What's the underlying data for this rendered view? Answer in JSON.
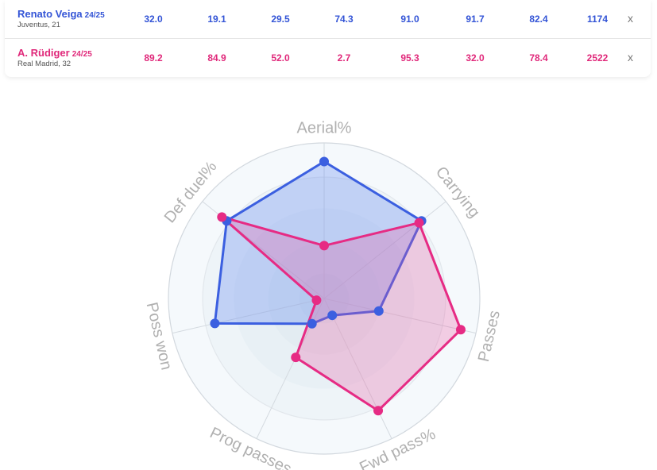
{
  "players": [
    {
      "name": "Renato Veiga",
      "season": "24/25",
      "team_age": "Juventus, 21",
      "stats": [
        "32.0",
        "19.1",
        "29.5",
        "74.3",
        "91.0",
        "91.7",
        "82.4",
        "1174"
      ],
      "remove_label": "x",
      "color": "#3b5fe0"
    },
    {
      "name": "A. Rüdiger",
      "season": "24/25",
      "team_age": "Real Madrid, 32",
      "stats": [
        "89.2",
        "84.9",
        "52.0",
        "2.7",
        "95.3",
        "32.0",
        "78.4",
        "2522"
      ],
      "remove_label": "x",
      "color": "#e62b84"
    }
  ],
  "chart_data": {
    "type": "radar",
    "axes": [
      "Aerial%",
      "Carrying",
      "Passes",
      "Fwd pass%",
      "Prog passes",
      "Poss won",
      "Def duel%"
    ],
    "range": [
      0,
      100
    ],
    "series": [
      {
        "name": "Renato Veiga",
        "values": [
          88,
          80,
          36,
          12,
          18,
          72,
          80
        ],
        "color": "#3b5fe0"
      },
      {
        "name": "A. Rüdiger",
        "values": [
          34,
          78,
          90,
          80,
          42,
          5,
          84
        ],
        "color": "#e62b84"
      }
    ]
  }
}
